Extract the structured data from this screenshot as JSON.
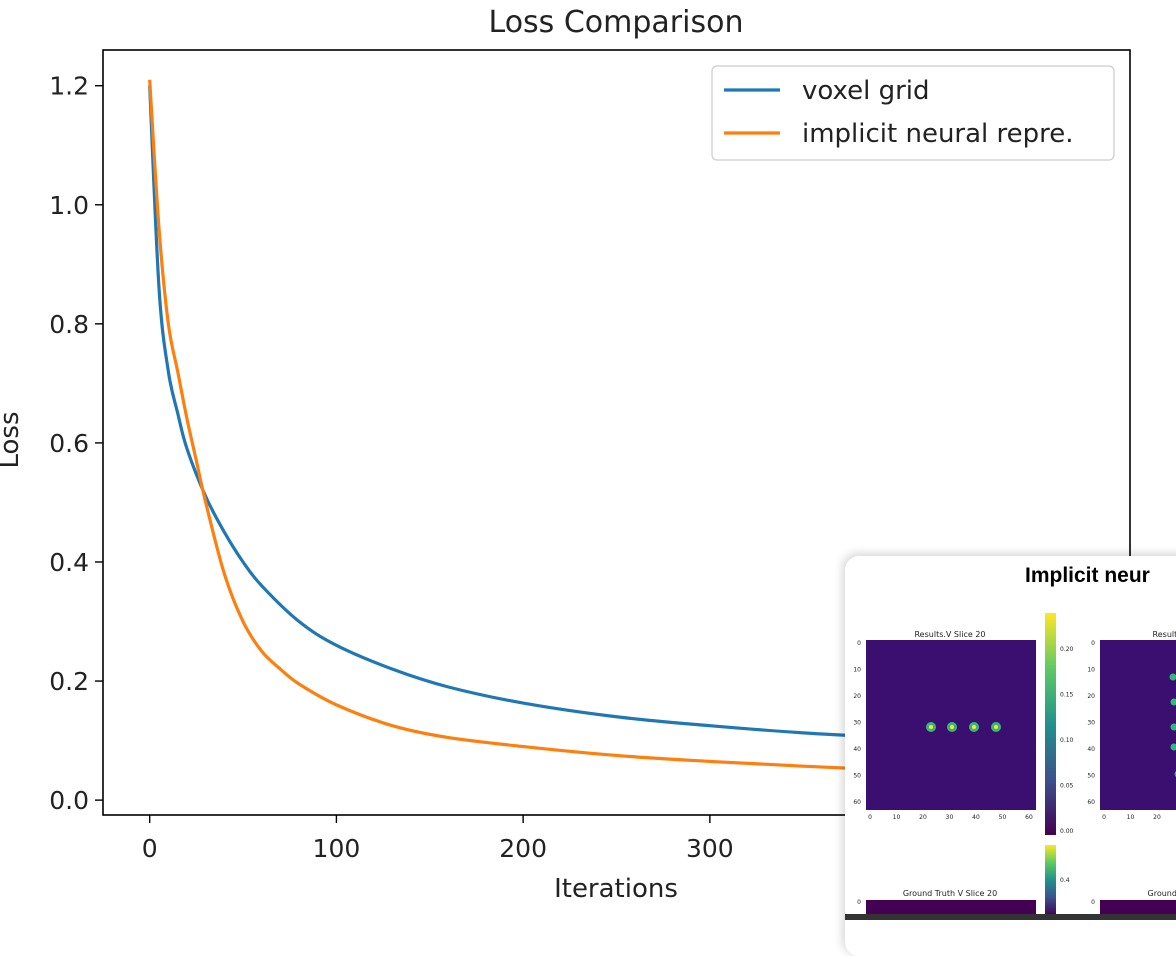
{
  "chart_data": {
    "type": "line",
    "title": "Loss Comparison",
    "xlabel": "Iterations",
    "ylabel": "Loss",
    "xlim": [
      -25,
      525
    ],
    "ylim": [
      -0.025,
      1.26
    ],
    "xticks": [
      "0",
      "100",
      "200",
      "300"
    ],
    "xtick_values": [
      0,
      100,
      200,
      300
    ],
    "yticks": [
      "0.0",
      "0.2",
      "0.4",
      "0.6",
      "0.8",
      "1.0",
      "1.2"
    ],
    "ytick_values": [
      0.0,
      0.2,
      0.4,
      0.6,
      0.8,
      1.0,
      1.2
    ],
    "grid": false,
    "legend_position": "top-right",
    "series": [
      {
        "name": "voxel grid",
        "color": "#1f77b4",
        "x": [
          0,
          5,
          10,
          15,
          20,
          30,
          40,
          50,
          60,
          80,
          100,
          130,
          160,
          200,
          250,
          300,
          350,
          400,
          450,
          499
        ],
        "y": [
          1.2,
          0.86,
          0.72,
          0.65,
          0.59,
          0.51,
          0.45,
          0.4,
          0.36,
          0.3,
          0.26,
          0.22,
          0.19,
          0.163,
          0.14,
          0.125,
          0.113,
          0.105,
          0.098,
          0.092
        ]
      },
      {
        "name": "implicit neural repre.",
        "color": "#ff7f0e",
        "x": [
          0,
          5,
          10,
          15,
          20,
          25,
          30,
          40,
          50,
          60,
          70,
          80,
          100,
          130,
          160,
          200,
          250,
          300,
          350,
          400,
          450,
          499
        ],
        "y": [
          1.21,
          0.96,
          0.8,
          0.72,
          0.64,
          0.57,
          0.5,
          0.38,
          0.3,
          0.25,
          0.22,
          0.195,
          0.16,
          0.125,
          0.105,
          0.09,
          0.075,
          0.065,
          0.057,
          0.05,
          0.045,
          0.04
        ]
      }
    ]
  },
  "overlay": {
    "title": "Implicit neur",
    "panels": [
      {
        "title": "Results.V Slice 20"
      },
      {
        "title": "Results"
      },
      {
        "title": "Ground Truth V Slice 20"
      },
      {
        "title": "Ground Tr"
      }
    ],
    "axis_ticks": [
      "0",
      "10",
      "20",
      "30",
      "40",
      "50",
      "60"
    ],
    "colorbar1_ticks": [
      "0.20",
      "0.15",
      "0.10",
      "0.05",
      "0.00"
    ],
    "colorbar2_ticks": [
      "0.4"
    ]
  }
}
